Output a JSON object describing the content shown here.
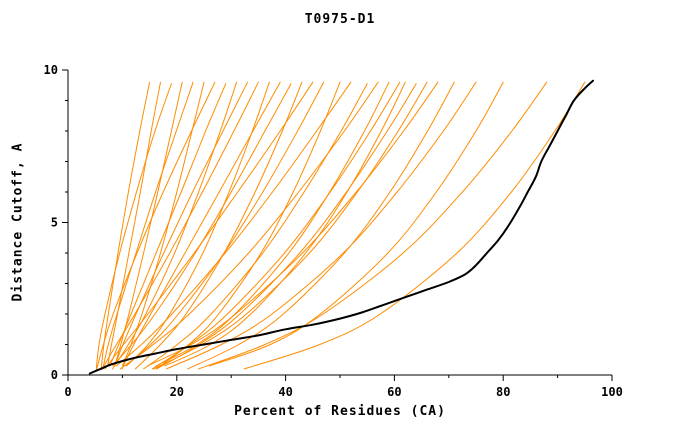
{
  "chart_data": {
    "type": "line",
    "title": "T0975-D1",
    "xlabel": "Percent of Residues (CA)",
    "ylabel": "Distance Cutoff, A",
    "xlim": [
      0,
      100
    ],
    "ylim": [
      0,
      10
    ],
    "x_major_ticks": [
      0,
      20,
      40,
      60,
      80,
      100
    ],
    "x_minor_ticks": [
      10,
      30,
      50,
      70,
      90
    ],
    "y_major_ticks": [
      0,
      5,
      10
    ],
    "y_minor_ticks": [
      1,
      2,
      3,
      4,
      6,
      7,
      8,
      9
    ],
    "grid": false,
    "legend": "none",
    "colors": {
      "model": "#ff8c00",
      "best_model": "#000000",
      "text": "#000000",
      "background": "#ffffff"
    },
    "series": [
      {
        "name": "model-01",
        "color": "#ff8c00",
        "width": 1,
        "points": [
          [
            6.1,
            0.2
          ],
          [
            6.6,
            1
          ],
          [
            7.4,
            2
          ],
          [
            9.2,
            4
          ],
          [
            11.1,
            6
          ],
          [
            13.2,
            8
          ],
          [
            15,
            9.6
          ]
        ]
      },
      {
        "name": "model-02",
        "color": "#ff8c00",
        "width": 1,
        "points": [
          [
            7.3,
            0.3
          ],
          [
            8.0,
            1
          ],
          [
            9.1,
            2
          ],
          [
            11.2,
            4
          ],
          [
            13.3,
            6
          ],
          [
            15.3,
            8
          ],
          [
            17,
            9.6
          ]
        ]
      },
      {
        "name": "model-03",
        "color": "#ff8c00",
        "width": 1,
        "points": [
          [
            5.2,
            0.2
          ],
          [
            5.7,
            1
          ],
          [
            6.8,
            2
          ],
          [
            9.5,
            4
          ],
          [
            12.6,
            6
          ],
          [
            16.0,
            8
          ],
          [
            19,
            9.55
          ]
        ]
      },
      {
        "name": "model-04",
        "color": "#ff8c00",
        "width": 1,
        "points": [
          [
            8.6,
            0.3
          ],
          [
            9.7,
            1
          ],
          [
            11.2,
            2
          ],
          [
            13.9,
            4
          ],
          [
            16.5,
            6
          ],
          [
            19.0,
            8
          ],
          [
            21,
            9.6
          ]
        ]
      },
      {
        "name": "model-05",
        "color": "#ff8c00",
        "width": 1,
        "points": [
          [
            6.4,
            0.2
          ],
          [
            7.4,
            1
          ],
          [
            9.0,
            2
          ],
          [
            12.5,
            4
          ],
          [
            16.1,
            6
          ],
          [
            19.9,
            8
          ],
          [
            23,
            9.6
          ]
        ]
      },
      {
        "name": "model-06",
        "color": "#ff8c00",
        "width": 1,
        "points": [
          [
            10.0,
            0.3
          ],
          [
            11.6,
            1
          ],
          [
            13.6,
            2
          ],
          [
            17.0,
            4
          ],
          [
            20.0,
            6
          ],
          [
            22.8,
            8
          ],
          [
            25,
            9.6
          ]
        ]
      },
      {
        "name": "model-07",
        "color": "#ff8c00",
        "width": 1,
        "points": [
          [
            5.3,
            0.2
          ],
          [
            6.5,
            1
          ],
          [
            8.3,
            2
          ],
          [
            12.7,
            4
          ],
          [
            17.5,
            6
          ],
          [
            22.7,
            8
          ],
          [
            27,
            9.6
          ]
        ]
      },
      {
        "name": "model-08",
        "color": "#ff8c00",
        "width": 1,
        "points": [
          [
            7.7,
            0.3
          ],
          [
            9.3,
            1
          ],
          [
            11.6,
            2
          ],
          [
            16.2,
            4
          ],
          [
            20.8,
            6
          ],
          [
            25.3,
            8
          ],
          [
            29,
            9.55
          ]
        ]
      },
      {
        "name": "model-09",
        "color": "#ff8c00",
        "width": 1,
        "points": [
          [
            8.2,
            0.2
          ],
          [
            11.1,
            1
          ],
          [
            14.3,
            2
          ],
          [
            19.6,
            4
          ],
          [
            24.0,
            6
          ],
          [
            28.0,
            8
          ],
          [
            31,
            9.6
          ]
        ]
      },
      {
        "name": "model-10",
        "color": "#ff8c00",
        "width": 1,
        "points": [
          [
            8.6,
            0.3
          ],
          [
            10.1,
            1
          ],
          [
            12.5,
            2
          ],
          [
            17.6,
            4
          ],
          [
            22.9,
            6
          ],
          [
            28.5,
            8
          ],
          [
            33,
            9.6
          ]
        ]
      },
      {
        "name": "model-11",
        "color": "#ff8c00",
        "width": 1,
        "points": [
          [
            6.3,
            0.2
          ],
          [
            8.9,
            1
          ],
          [
            12.3,
            2
          ],
          [
            18.7,
            4
          ],
          [
            24.7,
            6
          ],
          [
            30.5,
            8
          ],
          [
            35,
            9.6
          ]
        ]
      },
      {
        "name": "model-12",
        "color": "#ff8c00",
        "width": 1,
        "points": [
          [
            10.8,
            0.3
          ],
          [
            14.7,
            1
          ],
          [
            18.7,
            2
          ],
          [
            24.8,
            4
          ],
          [
            29.6,
            6
          ],
          [
            33.9,
            8
          ],
          [
            37,
            9.6
          ]
        ]
      },
      {
        "name": "model-13",
        "color": "#ff8c00",
        "width": 1,
        "points": [
          [
            9.9,
            0.2
          ],
          [
            12.1,
            1
          ],
          [
            15.2,
            2
          ],
          [
            21.5,
            4
          ],
          [
            27.8,
            6
          ],
          [
            34.0,
            8
          ],
          [
            39,
            9.6
          ]
        ]
      },
      {
        "name": "model-14",
        "color": "#ff8c00",
        "width": 1,
        "points": [
          [
            8.2,
            0.3
          ],
          [
            11.7,
            1
          ],
          [
            16.0,
            2
          ],
          [
            23.4,
            4
          ],
          [
            30.0,
            6
          ],
          [
            36.2,
            8
          ],
          [
            41,
            9.55
          ]
        ]
      },
      {
        "name": "model-15",
        "color": "#ff8c00",
        "width": 1,
        "points": [
          [
            12.4,
            0.2
          ],
          [
            17.0,
            1
          ],
          [
            21.7,
            2
          ],
          [
            28.7,
            4
          ],
          [
            34.4,
            6
          ],
          [
            39.4,
            8
          ],
          [
            43,
            9.6
          ]
        ]
      },
      {
        "name": "model-16",
        "color": "#ff8c00",
        "width": 1,
        "points": [
          [
            6.8,
            0.2
          ],
          [
            10.2,
            1
          ],
          [
            14.7,
            2
          ],
          [
            23.2,
            4
          ],
          [
            31.2,
            6
          ],
          [
            39.0,
            8
          ],
          [
            45,
            9.6
          ]
        ]
      },
      {
        "name": "model-17",
        "color": "#ff8c00",
        "width": 1,
        "points": [
          [
            10.5,
            0.3
          ],
          [
            15.2,
            1
          ],
          [
            20.3,
            2
          ],
          [
            28.7,
            4
          ],
          [
            35.8,
            6
          ],
          [
            42.2,
            8
          ],
          [
            47,
            9.6
          ]
        ]
      },
      {
        "name": "model-18",
        "color": "#ff8c00",
        "width": 1,
        "points": [
          [
            16.2,
            0.2
          ],
          [
            22.2,
            1
          ],
          [
            27.7,
            2
          ],
          [
            35.5,
            4
          ],
          [
            41.4,
            6
          ],
          [
            46.4,
            8
          ],
          [
            50,
            9.6
          ]
        ]
      },
      {
        "name": "model-19",
        "color": "#ff8c00",
        "width": 1,
        "points": [
          [
            8.9,
            0.3
          ],
          [
            13.5,
            1
          ],
          [
            19.1,
            2
          ],
          [
            28.9,
            4
          ],
          [
            37.6,
            6
          ],
          [
            45.7,
            8
          ],
          [
            52,
            9.6
          ]
        ]
      },
      {
        "name": "model-20",
        "color": "#ff8c00",
        "width": 1,
        "points": [
          [
            13.9,
            0.2
          ],
          [
            20.1,
            1
          ],
          [
            26.3,
            2
          ],
          [
            35.8,
            4
          ],
          [
            43.4,
            6
          ],
          [
            50.2,
            8
          ],
          [
            55,
            9.55
          ]
        ]
      },
      {
        "name": "model-21",
        "color": "#ff8c00",
        "width": 1,
        "points": [
          [
            9.6,
            0.2
          ],
          [
            15.7,
            1
          ],
          [
            22.3,
            2
          ],
          [
            33.2,
            4
          ],
          [
            42.4,
            6
          ],
          [
            50.8,
            8
          ],
          [
            57,
            9.6
          ]
        ]
      },
      {
        "name": "model-22",
        "color": "#ff8c00",
        "width": 1,
        "points": [
          [
            16.2,
            0.3
          ],
          [
            23.7,
            1
          ],
          [
            30.7,
            2
          ],
          [
            40.6,
            4
          ],
          [
            48.1,
            6
          ],
          [
            54.5,
            8
          ],
          [
            59,
            9.6
          ]
        ]
      },
      {
        "name": "model-23",
        "color": "#ff8c00",
        "width": 1,
        "points": [
          [
            15.5,
            0.2
          ],
          [
            22.4,
            1
          ],
          [
            29.3,
            2
          ],
          [
            39.8,
            4
          ],
          [
            48.2,
            6
          ],
          [
            55.6,
            8
          ],
          [
            61,
            9.6
          ]
        ]
      },
      {
        "name": "model-24",
        "color": "#ff8c00",
        "width": 1,
        "points": [
          [
            17.8,
            0.3
          ],
          [
            26.2,
            1
          ],
          [
            33.6,
            2
          ],
          [
            43.7,
            4
          ],
          [
            51.3,
            6
          ],
          [
            57.6,
            8
          ],
          [
            62,
            9.6
          ]
        ]
      },
      {
        "name": "model-25",
        "color": "#ff8c00",
        "width": 1,
        "points": [
          [
            16.3,
            0.2
          ],
          [
            24.1,
            1
          ],
          [
            31.6,
            2
          ],
          [
            42.6,
            4
          ],
          [
            51.2,
            6
          ],
          [
            58.7,
            8
          ],
          [
            64,
            9.55
          ]
        ]
      },
      {
        "name": "model-26",
        "color": "#ff8c00",
        "width": 1,
        "points": [
          [
            15.7,
            0.2
          ],
          [
            24.6,
            1
          ],
          [
            32.8,
            2
          ],
          [
            44.4,
            4
          ],
          [
            53.2,
            6
          ],
          [
            60.7,
            8
          ],
          [
            66,
            9.6
          ]
        ]
      },
      {
        "name": "model-27",
        "color": "#ff8c00",
        "width": 1,
        "points": [
          [
            14.6,
            0.3
          ],
          [
            22.7,
            1
          ],
          [
            30.8,
            2
          ],
          [
            43.1,
            4
          ],
          [
            53.0,
            6
          ],
          [
            61.7,
            8
          ],
          [
            68,
            9.6
          ]
        ]
      },
      {
        "name": "model-28",
        "color": "#ff8c00",
        "width": 1,
        "points": [
          [
            22.0,
            0.2
          ],
          [
            31.4,
            1
          ],
          [
            39.6,
            2
          ],
          [
            50.8,
            4
          ],
          [
            59.2,
            6
          ],
          [
            66.1,
            8
          ],
          [
            71,
            9.6
          ]
        ]
      },
      {
        "name": "model-29",
        "color": "#ff8c00",
        "width": 1,
        "points": [
          [
            18.1,
            0.2
          ],
          [
            28.2,
            1
          ],
          [
            37.5,
            2
          ],
          [
            50.6,
            4
          ],
          [
            60.5,
            6
          ],
          [
            69.0,
            8
          ],
          [
            75,
            9.6
          ]
        ]
      },
      {
        "name": "model-30",
        "color": "#ff8c00",
        "width": 1,
        "points": [
          [
            26.0,
            0.3
          ],
          [
            37.2,
            1
          ],
          [
            46.4,
            2
          ],
          [
            58.8,
            4
          ],
          [
            67.7,
            6
          ],
          [
            75.0,
            8
          ],
          [
            80,
            9.6
          ]
        ]
      },
      {
        "name": "model-31",
        "color": "#ff8c00",
        "width": 1,
        "points": [
          [
            24.0,
            0.2
          ],
          [
            36.2,
            1
          ],
          [
            46.9,
            2
          ],
          [
            61.6,
            4
          ],
          [
            72.5,
            6
          ],
          [
            81.6,
            8
          ],
          [
            88,
            9.6
          ]
        ]
      },
      {
        "name": "model-32",
        "color": "#ff8c00",
        "width": 1,
        "points": [
          [
            32.4,
            0.2
          ],
          [
            46.3,
            1
          ],
          [
            57.4,
            2
          ],
          [
            71.5,
            4
          ],
          [
            81.5,
            6
          ],
          [
            89.5,
            8
          ],
          [
            95,
            9.6
          ]
        ]
      },
      {
        "name": "best-model",
        "color": "#000000",
        "width": 2,
        "points": [
          [
            4,
            0.05
          ],
          [
            6,
            0.2
          ],
          [
            8,
            0.35
          ],
          [
            12,
            0.55
          ],
          [
            16,
            0.7
          ],
          [
            20,
            0.85
          ],
          [
            25,
            1.0
          ],
          [
            30,
            1.15
          ],
          [
            35,
            1.3
          ],
          [
            40,
            1.5
          ],
          [
            45,
            1.65
          ],
          [
            50,
            1.85
          ],
          [
            54,
            2.05
          ],
          [
            58,
            2.3
          ],
          [
            62,
            2.55
          ],
          [
            66,
            2.8
          ],
          [
            70,
            3.05
          ],
          [
            73,
            3.3
          ],
          [
            75,
            3.6
          ],
          [
            77,
            4.0
          ],
          [
            79,
            4.4
          ],
          [
            81,
            4.9
          ],
          [
            83,
            5.5
          ],
          [
            84.5,
            6.0
          ],
          [
            86,
            6.5
          ],
          [
            87,
            7.0
          ],
          [
            88.5,
            7.5
          ],
          [
            90,
            8.0
          ],
          [
            91.5,
            8.5
          ],
          [
            93,
            9.0
          ],
          [
            95,
            9.4
          ],
          [
            96.5,
            9.65
          ]
        ]
      }
    ]
  }
}
